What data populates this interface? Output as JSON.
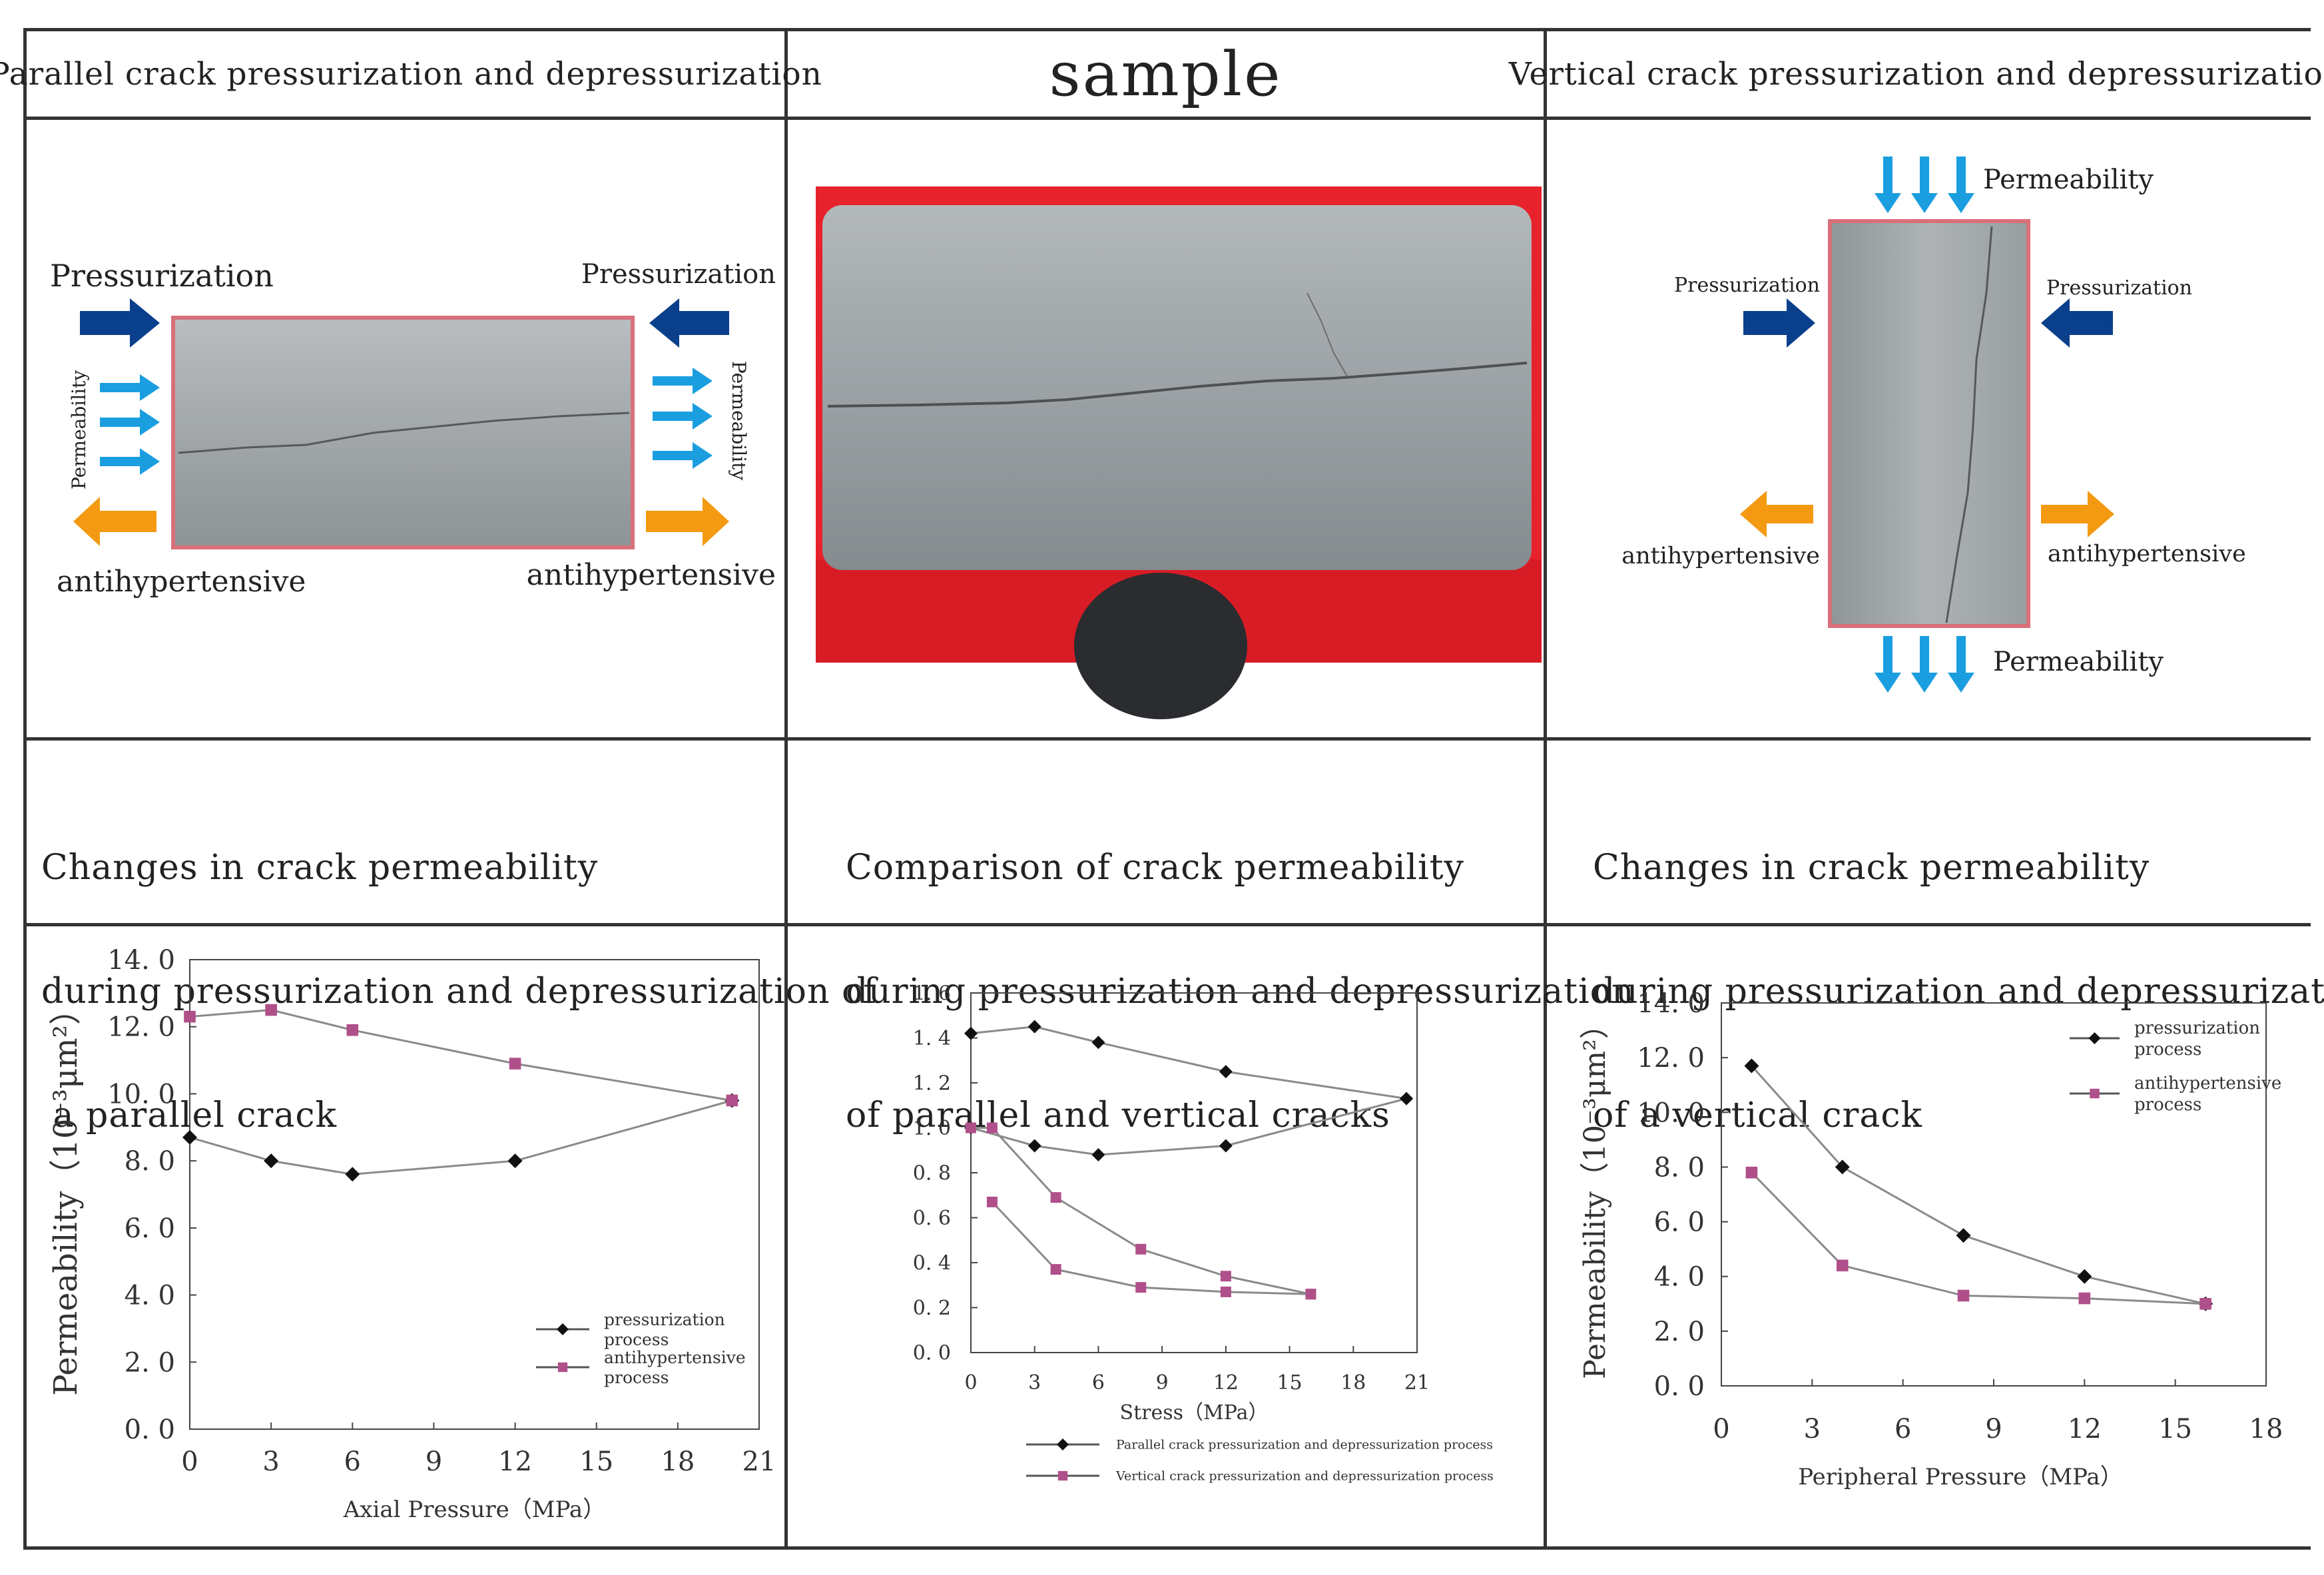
{
  "headers": {
    "left": "Parallel crack pressurization and depressurization",
    "center": "sample",
    "right": "Vertical crack pressurization and depressurization"
  },
  "diagram_left": {
    "pressurization_left": "Pressurization",
    "pressurization_right": "Pressurization",
    "permeability_left": "Permeability",
    "permeability_right": "Permeability",
    "antihyp_left": "antihypertensive",
    "antihyp_right": "antihypertensive"
  },
  "diagram_right": {
    "permeability_top": "Permeability",
    "permeability_bottom": "Permeability",
    "pressurization_left": "Pressurization",
    "pressurization_right": "Pressurization",
    "antihyp_left": "antihypertensive",
    "antihyp_right": "antihypertensive"
  },
  "captions": {
    "left": [
      "Changes in crack permeability",
      "during pressurization and depressurization of",
      " a parallel crack"
    ],
    "center": [
      "Comparison of crack permeability",
      "during pressurization and depressurization",
      "of parallel and vertical cracks"
    ],
    "right": [
      "Changes in crack permeability",
      "during pressurization and depressurization",
      "of a vertical crack"
    ]
  },
  "colors": {
    "black_series": "#111111",
    "magenta_series": "#b0508a",
    "blue_arrow": "#0a3f8c",
    "light_blue_arrow": "#1a9ee0",
    "orange_arrow": "#f39a12",
    "red_bg": "#e8222c",
    "core_gray": "#9aa0a3"
  },
  "chart_data": [
    {
      "type": "line",
      "title": "",
      "xlabel": "Axial Pressure（MPa）",
      "ylabel": "Permeability（10⁻³μm²）",
      "xlim": [
        0,
        21
      ],
      "ylim": [
        0,
        14
      ],
      "xticks": [
        "0",
        "3",
        "6",
        "9",
        "12",
        "15",
        "18",
        "21"
      ],
      "yticks": [
        "0. 0",
        "2. 0",
        "4. 0",
        "6. 0",
        "8. 0",
        "10. 0",
        "12. 0",
        "14. 0"
      ],
      "legend_position": "bottom-right",
      "grid": false,
      "series": [
        {
          "name": "pressurization process",
          "marker": "diamond",
          "x": [
            0,
            3,
            6,
            12,
            20
          ],
          "y": [
            8.7,
            8.0,
            7.6,
            8.0,
            9.8
          ]
        },
        {
          "name": "antihypertensive process",
          "marker": "square",
          "x": [
            0,
            3,
            6,
            12,
            20
          ],
          "y": [
            12.3,
            12.5,
            11.9,
            10.9,
            9.8
          ]
        }
      ]
    },
    {
      "type": "line",
      "title": "",
      "xlabel": "Stress（MPa）",
      "ylabel": "",
      "xlim": [
        0,
        21
      ],
      "ylim": [
        0,
        1.6
      ],
      "xticks": [
        "0",
        "3",
        "6",
        "9",
        "12",
        "15",
        "18",
        "21"
      ],
      "yticks": [
        "0. 0",
        "0. 2",
        "0. 4",
        "0. 6",
        "0. 8",
        "1. 0",
        "1. 2",
        "1. 4",
        "1. 6"
      ],
      "legend_position": "below",
      "grid": false,
      "series": [
        {
          "name": "Parallel crack pressurization and depressurization process",
          "marker": "diamond",
          "lines": [
            {
              "x": [
                0,
                3,
                6,
                12,
                20.5
              ],
              "y": [
                1.42,
                1.45,
                1.38,
                1.25,
                1.13
              ]
            },
            {
              "x": [
                0,
                3,
                6,
                12,
                20.5
              ],
              "y": [
                1.0,
                0.92,
                0.88,
                0.92,
                1.13
              ]
            }
          ]
        },
        {
          "name": "Vertical crack pressurization and depressurization process",
          "marker": "square",
          "lines": [
            {
              "x": [
                0,
                1,
                4,
                8,
                12,
                16
              ],
              "y": [
                1.0,
                1.0,
                0.69,
                0.46,
                0.34,
                0.26
              ]
            },
            {
              "x": [
                1,
                4,
                8,
                12,
                16
              ],
              "y": [
                0.67,
                0.37,
                0.29,
                0.27,
                0.26
              ]
            }
          ]
        }
      ]
    },
    {
      "type": "line",
      "title": "",
      "xlabel": "Peripheral Pressure（MPa）",
      "ylabel": "Permeability（10⁻³μm²）",
      "xlim": [
        0,
        18
      ],
      "ylim": [
        0,
        14
      ],
      "xticks": [
        "0",
        "3",
        "6",
        "9",
        "12",
        "15",
        "18"
      ],
      "yticks": [
        "0. 0",
        "2. 0",
        "4. 0",
        "6. 0",
        "8. 0",
        "10. 0",
        "12. 0",
        "14. 0"
      ],
      "legend_position": "top-right",
      "grid": false,
      "series": [
        {
          "name": "pressurization process",
          "marker": "diamond",
          "x": [
            1,
            4,
            8,
            12,
            16
          ],
          "y": [
            11.7,
            8.0,
            5.5,
            4.0,
            3.0
          ]
        },
        {
          "name": "antihypertensive process",
          "marker": "square",
          "x": [
            1,
            4,
            8,
            12,
            16
          ],
          "y": [
            7.8,
            4.4,
            3.3,
            3.2,
            3.0
          ]
        }
      ]
    }
  ]
}
